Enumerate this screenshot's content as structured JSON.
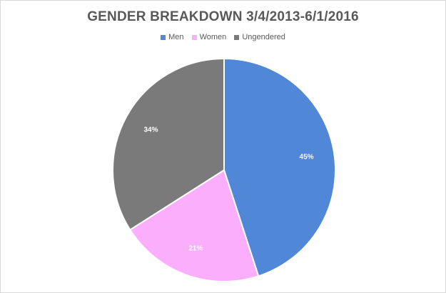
{
  "chart_data": {
    "type": "pie",
    "title": "GENDER BREAKDOWN 3/4/2013-6/1/2016",
    "categories": [
      "Men",
      "Women",
      "Ungendered"
    ],
    "values": [
      45,
      21,
      34
    ],
    "labels": [
      "45%",
      "21%",
      "34%"
    ],
    "colors": [
      "#5087d6",
      "#fbaefb",
      "#7a7a7a"
    ],
    "legend_position": "top"
  }
}
